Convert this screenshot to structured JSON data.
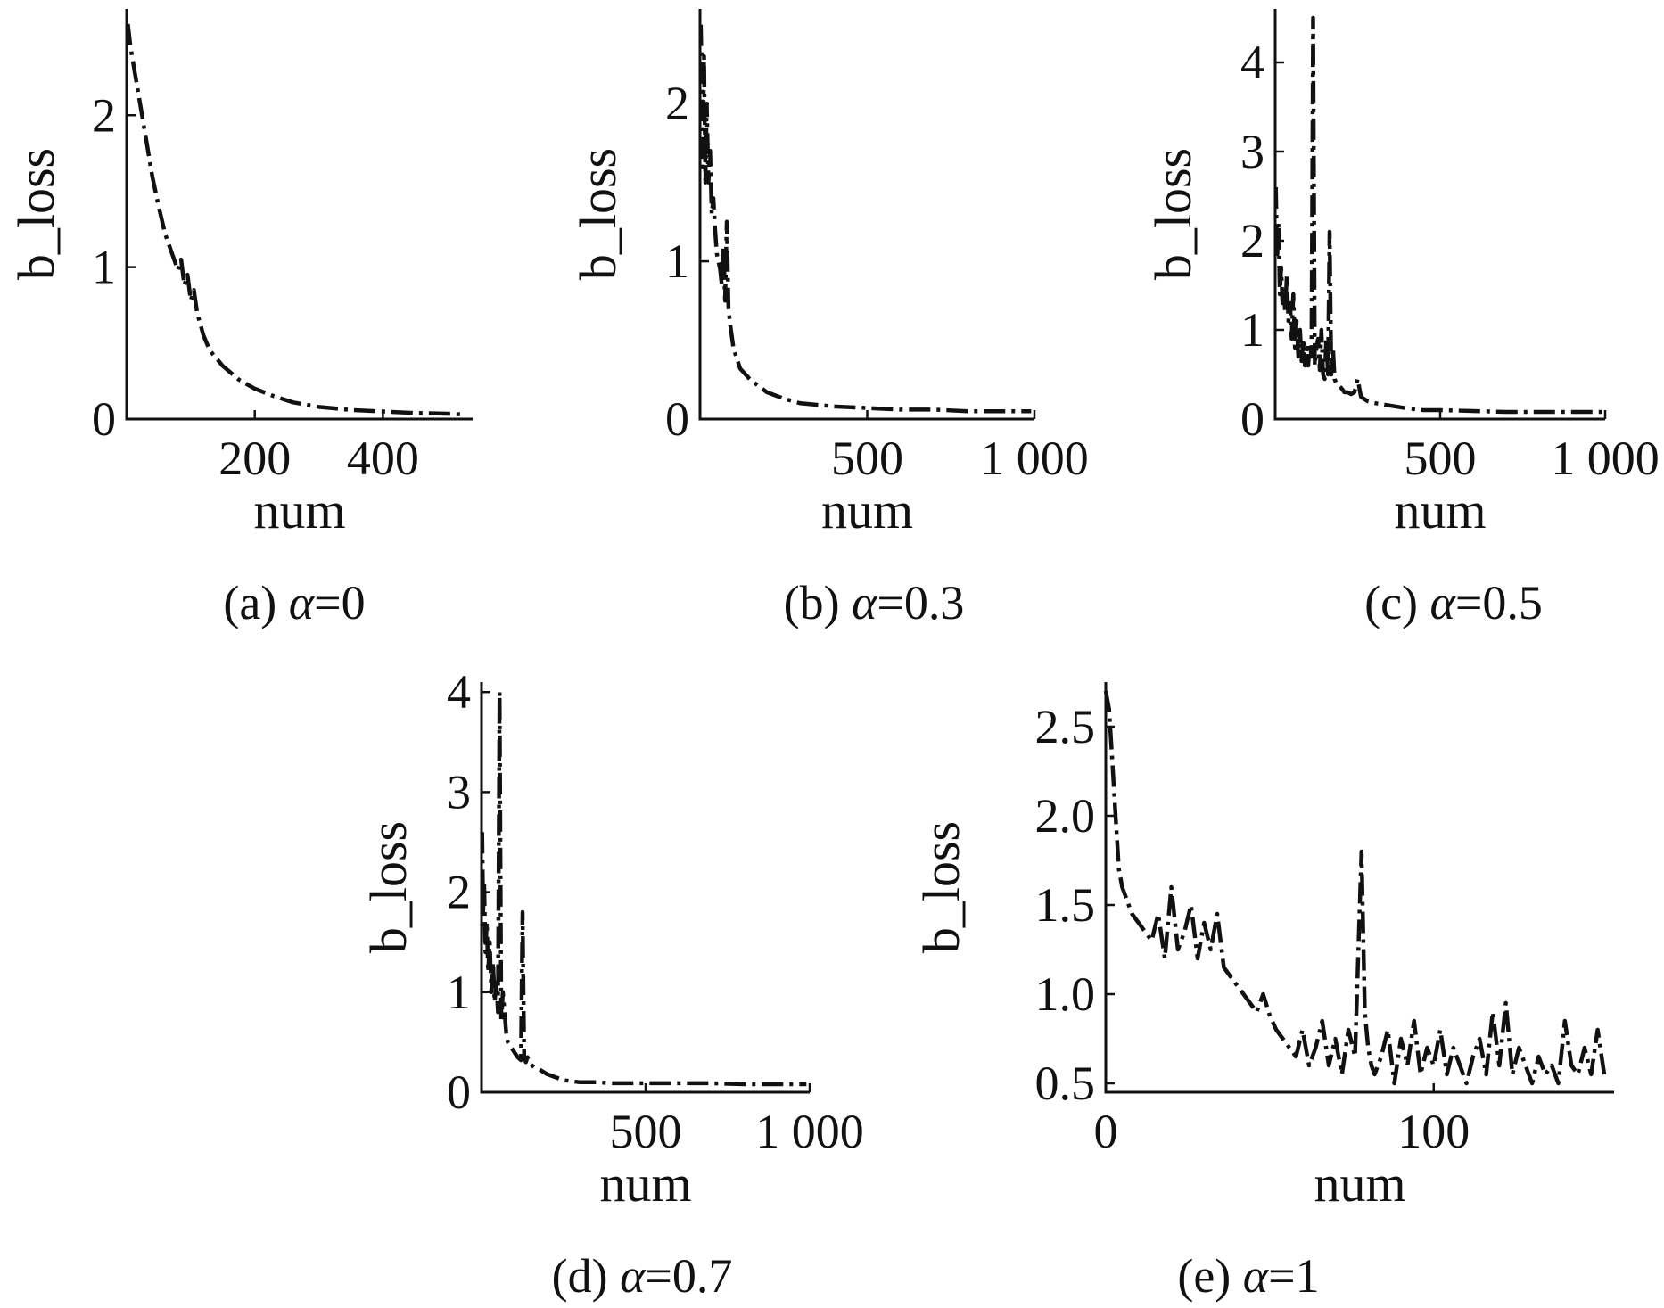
{
  "chart_data": [
    {
      "type": "line",
      "caption_prefix": "(a) ",
      "caption_symbol": "α",
      "caption_suffix": "=0",
      "xlabel": "num",
      "ylabel": "b_loss",
      "xlim": [
        0,
        540
      ],
      "ylim": [
        0,
        2.7
      ],
      "xticks": [
        {
          "v": 200,
          "label": "200"
        },
        {
          "v": 400,
          "label": "400"
        }
      ],
      "yticks": [
        {
          "v": 0,
          "label": "0"
        },
        {
          "v": 1,
          "label": "1"
        },
        {
          "v": 2,
          "label": "2"
        }
      ],
      "series": [
        {
          "x": [
            2,
            6,
            12,
            20,
            30,
            40,
            50,
            60,
            70,
            80,
            85,
            90,
            95,
            100,
            105,
            110,
            120,
            130,
            150,
            175,
            200,
            230,
            260,
            300,
            350,
            400,
            450,
            500,
            530
          ],
          "y": [
            2.6,
            2.45,
            2.3,
            2.1,
            1.85,
            1.6,
            1.4,
            1.22,
            1.1,
            0.98,
            1.05,
            0.88,
            0.95,
            0.78,
            0.85,
            0.7,
            0.55,
            0.45,
            0.35,
            0.26,
            0.2,
            0.15,
            0.11,
            0.08,
            0.06,
            0.05,
            0.04,
            0.035,
            0.03
          ]
        }
      ]
    },
    {
      "type": "line",
      "caption_prefix": "(b) ",
      "caption_symbol": "α",
      "caption_suffix": "=0.3",
      "xlabel": "num",
      "ylabel": "b_loss",
      "xlim": [
        0,
        1000
      ],
      "ylim": [
        0,
        2.6
      ],
      "xticks": [
        {
          "v": 500,
          "label": "500"
        },
        {
          "v": 1000,
          "label": "1 000"
        }
      ],
      "yticks": [
        {
          "v": 0,
          "label": "0"
        },
        {
          "v": 1,
          "label": "1"
        },
        {
          "v": 2,
          "label": "2"
        }
      ],
      "series": [
        {
          "x": [
            2,
            5,
            8,
            12,
            16,
            20,
            25,
            30,
            35,
            40,
            45,
            50,
            55,
            60,
            65,
            70,
            75,
            80,
            85,
            90,
            100,
            120,
            150,
            200,
            250,
            300,
            400,
            500,
            600,
            700,
            800,
            900,
            990
          ],
          "y": [
            2.5,
            2.2,
            1.6,
            2.3,
            1.5,
            2.0,
            1.5,
            1.7,
            1.3,
            1.4,
            1.2,
            1.05,
            1.0,
            0.95,
            0.85,
            1.1,
            0.75,
            1.25,
            0.7,
            0.6,
            0.45,
            0.32,
            0.25,
            0.17,
            0.13,
            0.1,
            0.08,
            0.07,
            0.06,
            0.06,
            0.05,
            0.05,
            0.05
          ]
        }
      ]
    },
    {
      "type": "line",
      "caption_prefix": "(c) ",
      "caption_symbol": "α",
      "caption_suffix": "=0.5",
      "xlabel": "num",
      "ylabel": "b_loss",
      "xlim": [
        0,
        1000
      ],
      "ylim": [
        0,
        4.6
      ],
      "xticks": [
        {
          "v": 500,
          "label": "500"
        },
        {
          "v": 1000,
          "label": "1 000"
        }
      ],
      "yticks": [
        {
          "v": 0,
          "label": "0"
        },
        {
          "v": 1,
          "label": "1"
        },
        {
          "v": 2,
          "label": "2"
        },
        {
          "v": 3,
          "label": "3"
        },
        {
          "v": 4,
          "label": "4"
        }
      ],
      "series": [
        {
          "x": [
            2,
            6,
            10,
            14,
            18,
            22,
            26,
            30,
            35,
            40,
            45,
            50,
            55,
            60,
            65,
            70,
            75,
            80,
            85,
            90,
            95,
            100,
            105,
            110,
            115,
            120,
            125,
            130,
            135,
            140,
            145,
            150,
            155,
            160,
            165,
            170,
            175,
            180,
            185,
            190,
            200,
            210,
            220,
            230,
            240,
            250,
            260,
            280,
            300,
            350,
            400,
            450,
            500,
            600,
            700,
            800,
            900,
            990
          ],
          "y": [
            2.6,
            1.8,
            2.2,
            1.4,
            1.7,
            1.3,
            1.5,
            1.2,
            1.6,
            1.1,
            1.3,
            0.9,
            1.4,
            0.8,
            1.1,
            0.7,
            1.0,
            0.65,
            0.9,
            0.6,
            0.8,
            0.6,
            0.85,
            0.7,
            4.5,
            0.6,
            0.8,
            0.9,
            0.55,
            1.0,
            0.5,
            0.45,
            0.9,
            0.5,
            2.1,
            0.5,
            0.8,
            0.45,
            0.4,
            0.38,
            0.35,
            0.3,
            0.3,
            0.28,
            0.3,
            0.45,
            0.25,
            0.2,
            0.18,
            0.15,
            0.12,
            0.1,
            0.1,
            0.09,
            0.08,
            0.08,
            0.08,
            0.08
          ]
        }
      ]
    },
    {
      "type": "line",
      "caption_prefix": "(d) ",
      "caption_symbol": "α",
      "caption_suffix": "=0.7",
      "xlabel": "num",
      "ylabel": "b_loss",
      "xlim": [
        0,
        1000
      ],
      "ylim": [
        0,
        4.1
      ],
      "xticks": [
        {
          "v": 500,
          "label": "500"
        },
        {
          "v": 1000,
          "label": "1 000"
        }
      ],
      "yticks": [
        {
          "v": 0,
          "label": "0"
        },
        {
          "v": 1,
          "label": "1"
        },
        {
          "v": 2,
          "label": "2"
        },
        {
          "v": 3,
          "label": "3"
        },
        {
          "v": 4,
          "label": "4"
        }
      ],
      "series": [
        {
          "x": [
            2,
            5,
            8,
            12,
            16,
            20,
            25,
            30,
            35,
            40,
            45,
            50,
            55,
            60,
            65,
            70,
            75,
            80,
            90,
            100,
            110,
            120,
            125,
            130,
            135,
            140,
            150,
            160,
            180,
            200,
            250,
            300,
            350,
            400,
            500,
            600,
            700,
            800,
            900,
            990
          ],
          "y": [
            2.6,
            1.8,
            2.1,
            1.4,
            1.7,
            1.2,
            1.5,
            1.0,
            1.3,
            0.9,
            1.1,
            0.8,
            4.0,
            0.7,
            1.0,
            0.8,
            0.6,
            0.5,
            0.45,
            0.4,
            0.35,
            0.32,
            1.8,
            0.35,
            0.3,
            0.35,
            0.28,
            0.25,
            0.22,
            0.18,
            0.12,
            0.1,
            0.1,
            0.09,
            0.09,
            0.09,
            0.09,
            0.08,
            0.08,
            0.08
          ]
        }
      ]
    },
    {
      "type": "line",
      "caption_prefix": "(e) ",
      "caption_symbol": "α",
      "caption_suffix": "=1",
      "xlabel": "num",
      "ylabel": "b_loss",
      "xlim": [
        0,
        155
      ],
      "ylim": [
        0.45,
        2.75
      ],
      "xticks": [
        {
          "v": 0,
          "label": "0"
        },
        {
          "v": 100,
          "label": "100"
        }
      ],
      "yticks": [
        {
          "v": 0.5,
          "label": "0.5"
        },
        {
          "v": 1.0,
          "label": "1.0"
        },
        {
          "v": 1.5,
          "label": "1.5"
        },
        {
          "v": 2.0,
          "label": "2.0"
        },
        {
          "v": 2.5,
          "label": "2.5"
        }
      ],
      "series": [
        {
          "x": [
            0,
            1,
            2,
            3,
            4,
            5,
            6,
            7,
            8,
            10,
            12,
            14,
            16,
            18,
            20,
            22,
            24,
            26,
            28,
            30,
            32,
            34,
            36,
            38,
            40,
            42,
            44,
            46,
            48,
            50,
            52,
            54,
            56,
            58,
            60,
            62,
            64,
            66,
            68,
            70,
            72,
            74,
            76,
            78,
            79,
            80,
            81,
            82,
            84,
            86,
            88,
            90,
            92,
            94,
            96,
            98,
            100,
            102,
            104,
            106,
            108,
            110,
            112,
            114,
            116,
            118,
            120,
            122,
            124,
            126,
            128,
            130,
            132,
            134,
            136,
            138,
            140,
            142,
            144,
            146,
            148,
            150,
            152
          ],
          "y": [
            2.7,
            2.6,
            2.3,
            2.0,
            1.7,
            1.6,
            1.55,
            1.5,
            1.45,
            1.4,
            1.35,
            1.3,
            1.45,
            1.2,
            1.6,
            1.25,
            1.35,
            1.5,
            1.2,
            1.4,
            1.25,
            1.45,
            1.15,
            1.1,
            1.05,
            1.0,
            0.95,
            0.9,
            1.0,
            0.88,
            0.8,
            0.75,
            0.7,
            0.65,
            0.8,
            0.6,
            0.7,
            0.85,
            0.6,
            0.75,
            0.55,
            0.8,
            0.65,
            1.8,
            0.9,
            0.7,
            0.6,
            0.55,
            0.65,
            0.8,
            0.5,
            0.75,
            0.6,
            0.85,
            0.55,
            0.7,
            0.6,
            0.8,
            0.55,
            0.7,
            0.6,
            0.5,
            0.65,
            0.75,
            0.55,
            0.9,
            0.6,
            0.95,
            0.55,
            0.7,
            0.6,
            0.5,
            0.65,
            0.55,
            0.6,
            0.5,
            0.85,
            0.6,
            0.55,
            0.7,
            0.55,
            0.8,
            0.55
          ]
        }
      ]
    }
  ]
}
